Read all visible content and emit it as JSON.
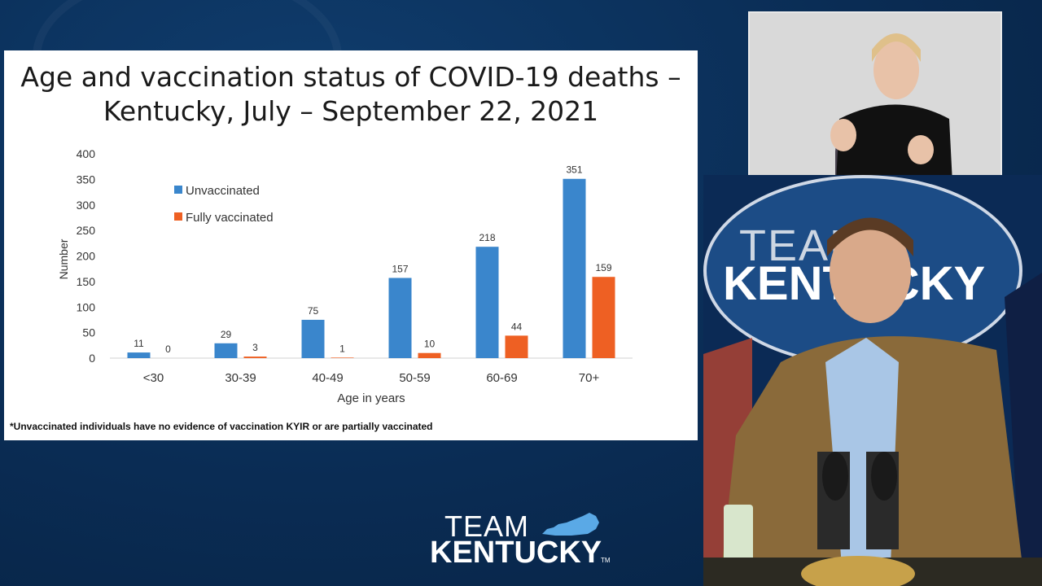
{
  "slide": {
    "title_line1": "Age and vaccination status of COVID-19 deaths –",
    "title_line2": "Kentucky, July – September 22, 2021",
    "footnote": "*Unvaccinated individuals have no evidence of vaccination KYIR or are partially vaccinated"
  },
  "chart_data": {
    "type": "bar",
    "categories": [
      "<30",
      "30-39",
      "40-49",
      "50-59",
      "60-69",
      "70+"
    ],
    "series": [
      {
        "name": "Unvaccinated",
        "values": [
          11,
          29,
          75,
          157,
          218,
          351
        ],
        "color": "#3a86cc"
      },
      {
        "name": "Fully vaccinated",
        "values": [
          0,
          3,
          1,
          10,
          44,
          159
        ],
        "color": "#ee6023"
      }
    ],
    "xlabel": "Age in years",
    "ylabel": "Number",
    "ylim": [
      0,
      400
    ],
    "yticks": [
      0,
      50,
      100,
      150,
      200,
      250,
      300,
      350,
      400
    ],
    "grid": false,
    "legend_position": "upper-left"
  },
  "branding": {
    "team": "TEAM",
    "kentucky": "KENTUCKY",
    "trademark": "TM",
    "state_color": "#5aa9e6"
  }
}
